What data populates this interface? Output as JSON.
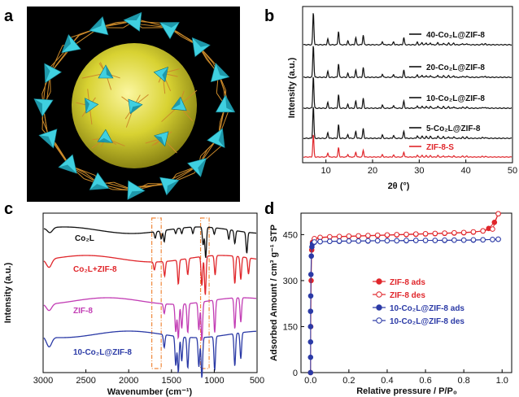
{
  "panels": {
    "a": {
      "letter": "a"
    },
    "b": {
      "letter": "b"
    },
    "c": {
      "letter": "c"
    },
    "d": {
      "letter": "d"
    }
  },
  "colors": {
    "black": "#111111",
    "red": "#e0262b",
    "magenta": "#c23cb4",
    "blue": "#2b3aa6",
    "orange_box": "#f0883a",
    "cyan": "#35c4d6",
    "yellow": "#d8d232",
    "frame": "#cc8a2a"
  },
  "chart_data": [
    {
      "panel": "b",
      "type": "line",
      "xlabel": "2θ (°)",
      "ylabel": "Intensity (a.u.)",
      "xlim": [
        5,
        50
      ],
      "xticks": [
        10,
        20,
        30,
        40,
        50
      ],
      "peaks_2theta": [
        7.3,
        10.4,
        12.7,
        14.7,
        16.4,
        18.0,
        22.1,
        24.5,
        26.7,
        29.6,
        30.6,
        31.5,
        32.4,
        34.0,
        35.2,
        36.3,
        37.4,
        39.3,
        40.2,
        43.5,
        44.2
      ],
      "peak_rel_heights": [
        1.0,
        0.18,
        0.42,
        0.12,
        0.22,
        0.3,
        0.1,
        0.09,
        0.22,
        0.08,
        0.07,
        0.06,
        0.06,
        0.07,
        0.05,
        0.05,
        0.05,
        0.04,
        0.04,
        0.03,
        0.03
      ],
      "series": [
        {
          "name": "40-Co₂L@ZIF-8",
          "color": "#111111"
        },
        {
          "name": "20-Co₂L@ZIF-8",
          "color": "#111111"
        },
        {
          "name": "10-Co₂L@ZIF-8",
          "color": "#111111"
        },
        {
          "name": "5-Co₂L@ZIF-8",
          "color": "#111111"
        },
        {
          "name": "ZIF-8-S",
          "color": "#e0262b"
        }
      ]
    },
    {
      "panel": "c",
      "type": "line",
      "xlabel": "Wavenumber (cm⁻¹)",
      "ylabel": "Intensity (a.u.)",
      "xlim": [
        3000,
        500
      ],
      "xticks": [
        3000,
        2500,
        2000,
        1500,
        1000,
        500
      ],
      "highlight_ranges_cm1": [
        [
          1730,
          1620
        ],
        [
          1160,
          1060
        ]
      ],
      "series": [
        {
          "name": "Co₂L",
          "color": "#111111"
        },
        {
          "name": "Co₂L+ZIF-8",
          "color": "#e0262b"
        },
        {
          "name": "ZIF-8",
          "color": "#c23cb4"
        },
        {
          "name": "10-Co₂L@ZIF-8",
          "color": "#2b3aa6"
        }
      ]
    },
    {
      "panel": "d",
      "type": "scatter",
      "xlabel": "Relative pressure / P/P₀",
      "ylabel": "Adsorbed Amount / cm³ g⁻¹ STP",
      "xlim": [
        -0.05,
        1.05
      ],
      "ylim": [
        0,
        520
      ],
      "xticks": [
        0.0,
        0.2,
        0.4,
        0.6,
        0.8,
        1.0
      ],
      "xtick_labels": [
        "0.0",
        "0.2",
        "0.4",
        "0.6",
        "0.8",
        "1.0"
      ],
      "yticks": [
        0,
        150,
        300,
        450
      ],
      "series": [
        {
          "name": "ZIF-8 ads",
          "color": "#e0262b",
          "marker": "filled-circle",
          "x": [
            0.0,
            0.001,
            0.003,
            0.006,
            0.01,
            0.02,
            0.05,
            0.1,
            0.15,
            0.2,
            0.25,
            0.3,
            0.35,
            0.4,
            0.45,
            0.5,
            0.55,
            0.6,
            0.65,
            0.7,
            0.75,
            0.8,
            0.85,
            0.9,
            0.93,
            0.96,
            0.98
          ],
          "y": [
            0,
            150,
            300,
            400,
            425,
            435,
            440,
            442,
            443,
            444,
            445,
            446,
            447,
            448,
            449,
            450,
            451,
            452,
            453,
            454,
            455,
            456,
            458,
            462,
            470,
            490,
            518
          ]
        },
        {
          "name": "ZIF-8 des",
          "color": "#e0262b",
          "marker": "open-circle",
          "x": [
            0.98,
            0.95,
            0.9,
            0.85,
            0.8,
            0.75,
            0.7,
            0.65,
            0.6,
            0.55,
            0.5,
            0.45,
            0.4,
            0.35,
            0.3,
            0.25,
            0.2,
            0.15,
            0.1,
            0.05,
            0.02
          ],
          "y": [
            518,
            468,
            462,
            459,
            457,
            456,
            455,
            454,
            453,
            452,
            451,
            450,
            449,
            448,
            447,
            446,
            445,
            444,
            443,
            441,
            437
          ]
        },
        {
          "name": "10-Co₂L@ZIF-8 ads",
          "color": "#2b3aa6",
          "marker": "filled-circle",
          "x": [
            0.0,
            0.0,
            0.0,
            0.0,
            0.0,
            0.001,
            0.002,
            0.004,
            0.007,
            0.01,
            0.02,
            0.05,
            0.1,
            0.15,
            0.2,
            0.25,
            0.3,
            0.35,
            0.4,
            0.45,
            0.5,
            0.55,
            0.6,
            0.65,
            0.7,
            0.75,
            0.8,
            0.85,
            0.9,
            0.95,
            0.98
          ],
          "y": [
            0,
            50,
            100,
            150,
            200,
            250,
            320,
            380,
            410,
            420,
            425,
            427,
            428,
            428,
            429,
            429,
            429,
            430,
            430,
            430,
            430,
            431,
            431,
            431,
            431,
            432,
            432,
            432,
            433,
            434,
            435
          ]
        },
        {
          "name": "10-Co₂L@ZIF-8 des",
          "color": "#2b3aa6",
          "marker": "open-circle",
          "x": [
            0.98,
            0.95,
            0.9,
            0.85,
            0.8,
            0.75,
            0.7,
            0.65,
            0.6,
            0.55,
            0.5,
            0.45,
            0.4,
            0.35,
            0.3,
            0.25,
            0.2,
            0.15,
            0.1,
            0.05,
            0.02
          ],
          "y": [
            435,
            434,
            433,
            433,
            432,
            432,
            432,
            431,
            431,
            431,
            431,
            430,
            430,
            430,
            430,
            429,
            429,
            429,
            428,
            427,
            426
          ]
        }
      ]
    }
  ]
}
